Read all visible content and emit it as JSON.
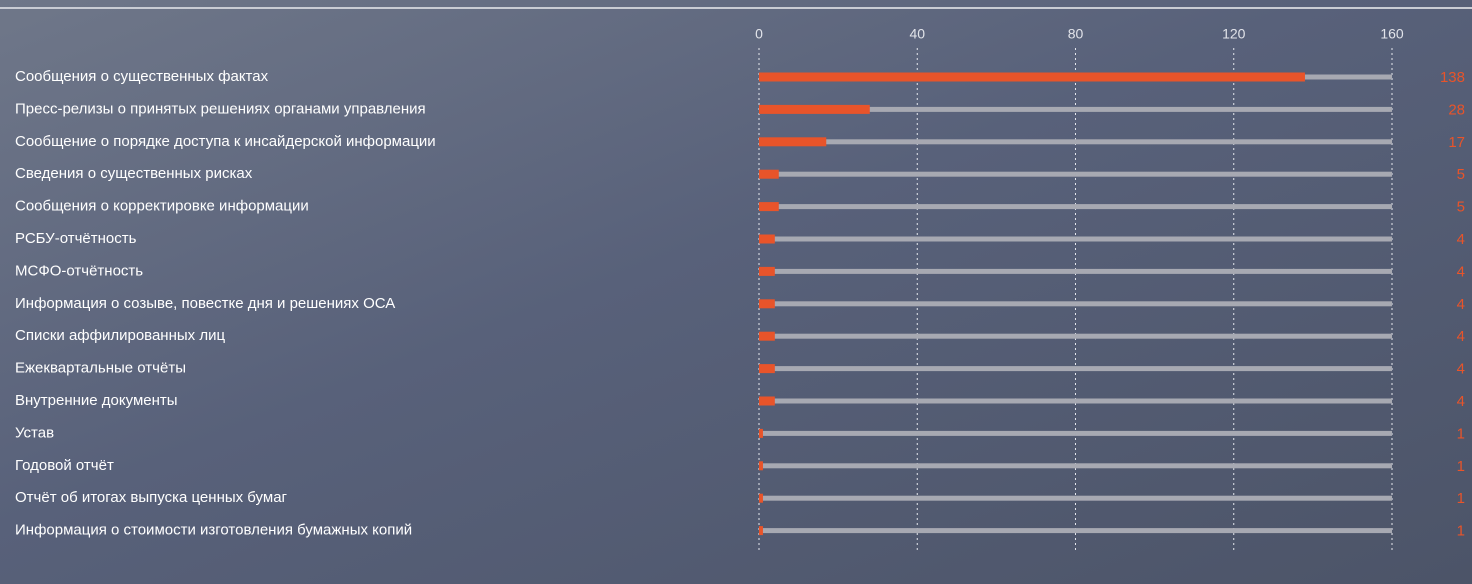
{
  "chart_data": {
    "type": "bar",
    "orientation": "horizontal",
    "categories": [
      "Сообщения о существенных фактах",
      "Пресс-релизы о принятых решениях органами управления",
      "Сообщение о порядке доступа к инсайдерской информации",
      "Сведения о существенных рисках",
      "Сообщения о корректировке информации",
      "РСБУ-отчётность",
      "МСФО-отчётность",
      "Информация о созыве, повестке дня и решениях ОСА",
      "Списки аффилированных лиц",
      "Ежеквартальные отчёты",
      "Внутренние документы",
      "Устав",
      "Годовой отчёт",
      "Отчёт об итогах выпуска ценных бумаг",
      "Информация о стоимости изготовления бумажных копий"
    ],
    "values": [
      138,
      28,
      17,
      5,
      5,
      4,
      4,
      4,
      4,
      4,
      4,
      1,
      1,
      1,
      1
    ],
    "color": "#e8542a",
    "xlim": [
      0,
      160
    ],
    "xticks": [
      0,
      40,
      80,
      120,
      160
    ],
    "grid": true
  }
}
